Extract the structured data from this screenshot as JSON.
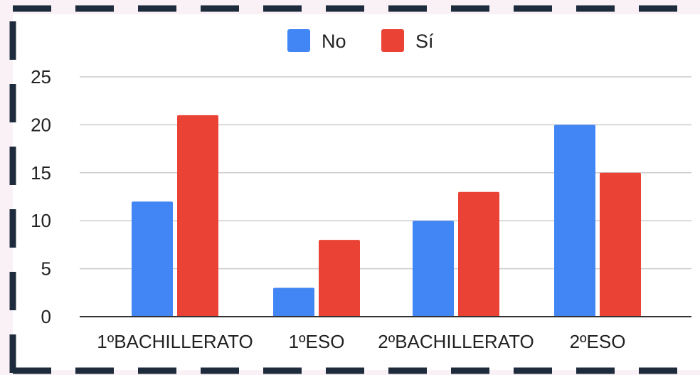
{
  "chart_data": {
    "type": "bar",
    "categories": [
      "1ºBACHILLERATO",
      "1ºESO",
      "2ºBACHILLERATO",
      "2ºESO"
    ],
    "series": [
      {
        "name": "No",
        "values": [
          12,
          3,
          10,
          20
        ],
        "color": "#4285f4"
      },
      {
        "name": "Sí",
        "values": [
          21,
          8,
          13,
          15
        ],
        "color": "#ea4335"
      }
    ],
    "ylim": [
      0,
      25
    ],
    "yticks": [
      0,
      5,
      10,
      15,
      20,
      25
    ],
    "grid": true,
    "legend_position": "top-center",
    "title": "",
    "xlabel": "",
    "ylabel": ""
  },
  "colors": {
    "page_background": "#f9f1f6",
    "frame_border": "#1e2b3c",
    "plot_background": "#ffffff",
    "gridline": "#cccccc",
    "axis": "#333333"
  }
}
